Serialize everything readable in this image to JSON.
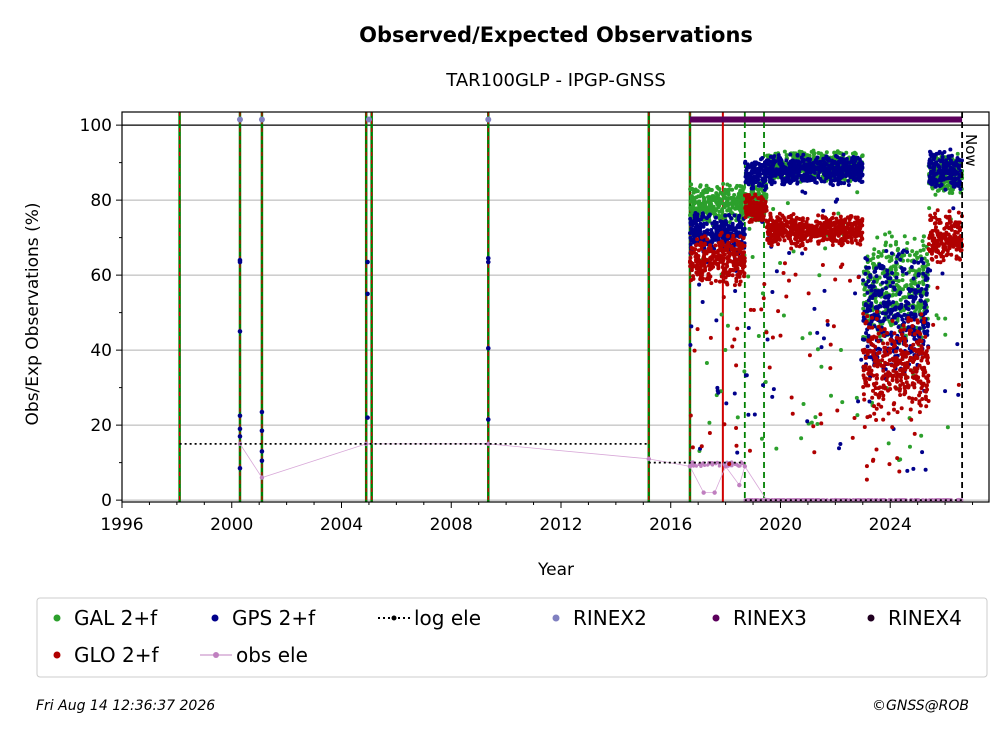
{
  "chart_data": {
    "type": "scatter",
    "title": "Observed/Expected Observations",
    "subtitle": "TAR100GLP - IPGP-GNSS",
    "xlabel": "Year",
    "ylabel": "Obs/Exp Observations (%)",
    "xlim": [
      1996,
      2027.6
    ],
    "ylim": [
      -0.5,
      103.5
    ],
    "x_ticks": [
      "1996",
      "2000",
      "2004",
      "2008",
      "2012",
      "2016",
      "2020",
      "2024"
    ],
    "y_ticks": [
      "0",
      "20",
      "40",
      "60",
      "80",
      "100"
    ],
    "grid": "horizontal",
    "now_label": "Now",
    "now_x": 2026.62,
    "legend_position": "bottom",
    "legend": [
      {
        "label": "GAL 2+f",
        "marker": "dot",
        "color": "#2ca02c"
      },
      {
        "label": "GPS 2+f",
        "marker": "dot",
        "color": "#00008b"
      },
      {
        "label": "log ele",
        "marker": "dotted-line",
        "color": "#000000"
      },
      {
        "label": "RINEX2",
        "marker": "dot",
        "color": "#8080c0"
      },
      {
        "label": "RINEX3",
        "marker": "dot",
        "color": "#5c005c"
      },
      {
        "label": "RINEX4",
        "marker": "dot",
        "color": "#200020"
      },
      {
        "label": "GLO 2+f",
        "marker": "dot",
        "color": "#b00000"
      },
      {
        "label": "obs ele",
        "marker": "line-dot",
        "color": "#c080c0"
      }
    ],
    "equipment_change_lines": [
      {
        "x": 1998.1,
        "style": "green-red-dashed"
      },
      {
        "x": 2000.3,
        "style": "green-red-dashed"
      },
      {
        "x": 2001.1,
        "style": "green-red-dashed"
      },
      {
        "x": 2004.9,
        "style": "green-red-dashed"
      },
      {
        "x": 2005.1,
        "style": "green-red-dashed"
      },
      {
        "x": 2009.35,
        "style": "green-red-dashed"
      },
      {
        "x": 2015.2,
        "style": "green-red-dashed"
      },
      {
        "x": 2016.7,
        "style": "green-red-dashed"
      },
      {
        "x": 2017.9,
        "style": "solid-red"
      },
      {
        "x": 2018.7,
        "style": "dashed-green"
      },
      {
        "x": 2019.4,
        "style": "dashed-green"
      }
    ],
    "log_ele": [
      {
        "x_start": 1998.1,
        "x_end": 2015.2,
        "y": 15
      },
      {
        "x_start": 2015.2,
        "x_end": 2018.7,
        "y": 10
      },
      {
        "x_start": 2018.7,
        "x_end": 2026.62,
        "y": 0
      }
    ],
    "obs_ele": [
      {
        "x": 2000.3,
        "y": 15
      },
      {
        "x": 2001.1,
        "y": 6
      },
      {
        "x": 2004.9,
        "y": 15
      },
      {
        "x": 2009.35,
        "y": 15
      },
      {
        "x": 2015.2,
        "y": 11
      },
      {
        "x": 2016.7,
        "y": 9
      },
      {
        "x": 2017.2,
        "y": 2
      },
      {
        "x": 2017.6,
        "y": 2
      },
      {
        "x": 2018.0,
        "y": 9
      },
      {
        "x": 2018.5,
        "y": 4
      },
      {
        "x": 2018.7,
        "y": 9
      },
      {
        "x": 2019.5,
        "y": 0
      },
      {
        "x": 2022.0,
        "y": 0
      },
      {
        "x": 2024.0,
        "y": 0
      },
      {
        "x": 2026.5,
        "y": 0
      }
    ],
    "rinex2": [
      {
        "x": 2000.3,
        "y": 101.5
      },
      {
        "x": 2001.1,
        "y": 101.5
      },
      {
        "x": 2005.0,
        "y": 101.5
      },
      {
        "x": 2009.35,
        "y": 101.5
      }
    ],
    "rinex3_range": {
      "x_start": 2016.7,
      "x_end": 2026.62,
      "y": 101.5
    },
    "gps_sparse": [
      {
        "x": 2000.3,
        "y": 64
      },
      {
        "x": 2000.3,
        "y": 63.5
      },
      {
        "x": 2000.3,
        "y": 45
      },
      {
        "x": 2000.3,
        "y": 22.5
      },
      {
        "x": 2000.3,
        "y": 19
      },
      {
        "x": 2000.3,
        "y": 17
      },
      {
        "x": 2000.3,
        "y": 8.5
      },
      {
        "x": 2001.1,
        "y": 23.5
      },
      {
        "x": 2001.1,
        "y": 18.5
      },
      {
        "x": 2001.1,
        "y": 13
      },
      {
        "x": 2001.1,
        "y": 10.5
      },
      {
        "x": 2004.95,
        "y": 63.5
      },
      {
        "x": 2004.95,
        "y": 55
      },
      {
        "x": 2004.95,
        "y": 22
      },
      {
        "x": 2009.35,
        "y": 64.5
      },
      {
        "x": 2009.35,
        "y": 63.5
      },
      {
        "x": 2009.35,
        "y": 40.5
      },
      {
        "x": 2009.35,
        "y": 21.5
      }
    ],
    "dense_series": [
      {
        "name": "GAL 2+f",
        "color": "#2ca02c",
        "segments": [
          {
            "x_start": 2016.7,
            "x_end": 2018.7,
            "y_mean": 79,
            "y_spread": 4
          },
          {
            "x_start": 2018.7,
            "x_end": 2019.5,
            "y_mean": 80,
            "y_spread": 4
          },
          {
            "x_start": 2019.5,
            "x_end": 2023.0,
            "y_mean": 89,
            "y_spread": 3
          },
          {
            "x_start": 2023.0,
            "x_end": 2025.4,
            "y_mean": 56,
            "y_spread": 11
          },
          {
            "x_start": 2025.4,
            "x_end": 2026.62,
            "y_mean": 87,
            "y_spread": 4
          }
        ]
      },
      {
        "name": "GPS 2+f",
        "color": "#00008b",
        "segments": [
          {
            "x_start": 2016.7,
            "x_end": 2018.7,
            "y_mean": 71,
            "y_spread": 4
          },
          {
            "x_start": 2018.7,
            "x_end": 2019.5,
            "y_mean": 87,
            "y_spread": 3
          },
          {
            "x_start": 2019.5,
            "x_end": 2023.0,
            "y_mean": 88,
            "y_spread": 3
          },
          {
            "x_start": 2023.0,
            "x_end": 2025.4,
            "y_mean": 50,
            "y_spread": 12
          },
          {
            "x_start": 2025.4,
            "x_end": 2026.62,
            "y_mean": 88,
            "y_spread": 4
          }
        ]
      },
      {
        "name": "GLO 2+f",
        "color": "#b00000",
        "segments": [
          {
            "x_start": 2016.7,
            "x_end": 2018.7,
            "y_mean": 64,
            "y_spread": 5
          },
          {
            "x_start": 2018.7,
            "x_end": 2019.5,
            "y_mean": 78,
            "y_spread": 3
          },
          {
            "x_start": 2019.5,
            "x_end": 2023.0,
            "y_mean": 72,
            "y_spread": 3
          },
          {
            "x_start": 2023.0,
            "x_end": 2025.4,
            "y_mean": 36,
            "y_spread": 10
          },
          {
            "x_start": 2025.4,
            "x_end": 2026.62,
            "y_mean": 70,
            "y_spread": 5
          }
        ]
      }
    ]
  },
  "footer": {
    "timestamp": "Fri Aug 14 12:36:37 2026",
    "copyright": "©GNSS@ROB"
  }
}
